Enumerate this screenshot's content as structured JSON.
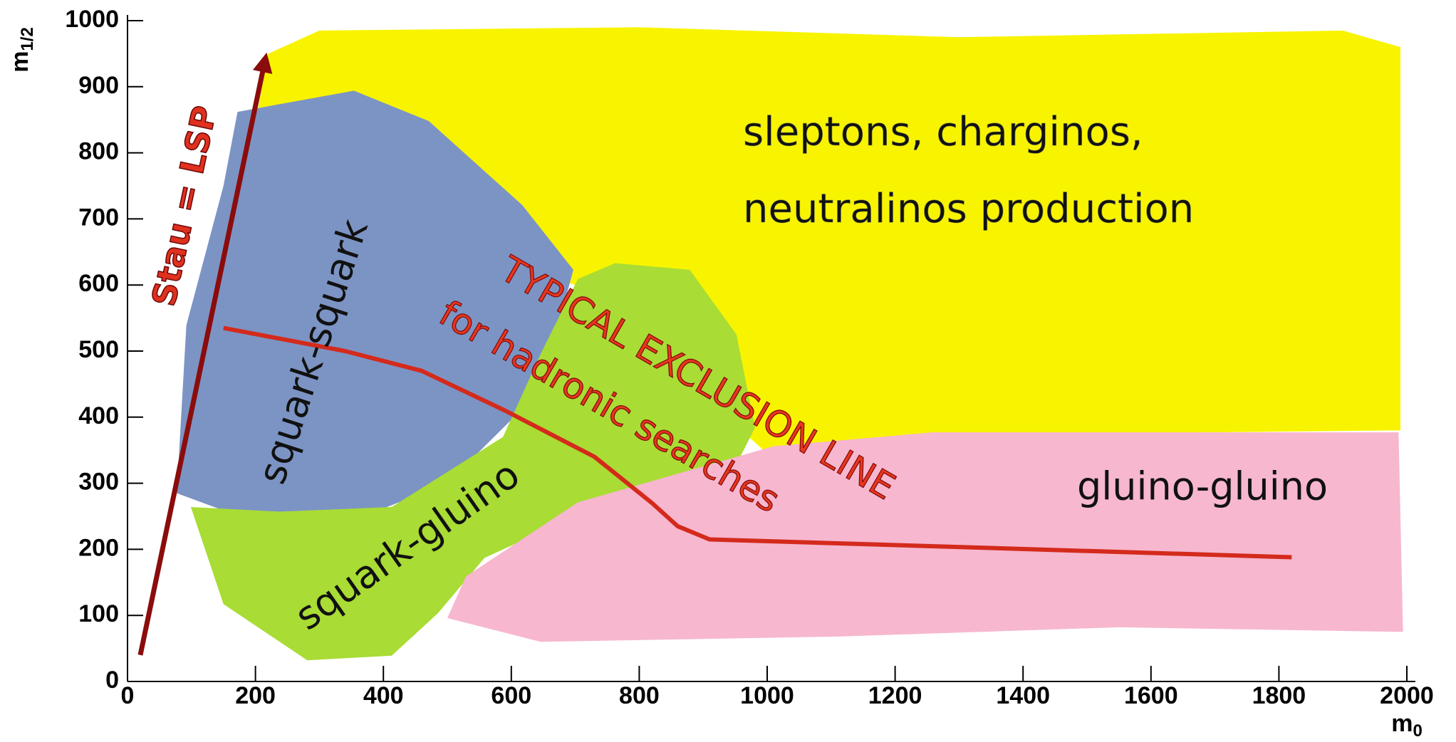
{
  "chart_data": {
    "type": "line",
    "xlabel": "m",
    "xlabel_sub": "0",
    "ylabel": "m",
    "ylabel_sub": "1/2",
    "xlim": [
      0,
      2000
    ],
    "ylim": [
      0,
      1000
    ],
    "xticks": [
      0,
      200,
      400,
      600,
      800,
      1000,
      1200,
      1400,
      1600,
      1800,
      2000
    ],
    "yticks": [
      0,
      100,
      200,
      300,
      400,
      500,
      600,
      700,
      800,
      900,
      1000
    ],
    "regions": [
      {
        "label": [
          "sleptons, charginos,",
          "neutralinos production"
        ],
        "color": "#f8f400",
        "x": [
          172,
          220,
          300,
          800,
          1300,
          1900,
          1990,
          1990,
          1500,
          1000,
          960,
          700,
          400,
          172
        ],
        "y": [
          700,
          950,
          985,
          990,
          975,
          985,
          960,
          380,
          375,
          345,
          380,
          600,
          700,
          700
        ]
      },
      {
        "label": "squark-squark",
        "color": "#7c94c4",
        "x": [
          172,
          354,
          471,
          617,
          697,
          646,
          500,
          369,
          194,
          77,
          92,
          150
        ],
        "y": [
          862,
          894,
          848,
          721,
          623,
          440,
          300,
          250,
          243,
          285,
          539,
          750
        ]
      },
      {
        "label": "squark-gluino",
        "color": "#a9dc34",
        "x": [
          704,
          762,
          879,
          952,
          981,
          937,
          748,
          558,
          485,
          413,
          281,
          150,
          99,
          238,
          413,
          587,
          646
        ],
        "y": [
          609,
          633,
          623,
          525,
          384,
          300,
          271,
          187,
          103,
          39,
          32,
          117,
          264,
          257,
          264,
          370,
          496
        ]
      },
      {
        "label": "gluino-gluino",
        "color": "#f7b7cf",
        "x": [
          500,
          529,
          704,
          1010,
          1258,
          1987,
          1994,
          1550,
          1112,
          646
        ],
        "y": [
          96,
          159,
          271,
          356,
          377,
          377,
          75,
          82,
          68,
          60
        ]
      }
    ],
    "series": [
      {
        "label": [
          "TYPICAL EXCLUSION LINE",
          "for hadronic searches"
        ],
        "color": "#d42a1c",
        "x": [
          150,
          340,
          460,
          590,
          730,
          820,
          860,
          910,
          1820
        ],
        "y": [
          535,
          500,
          470,
          410,
          340,
          270,
          235,
          215,
          188
        ]
      },
      {
        "label": "Stau = LSP",
        "color": "#8b0c0c",
        "x": [
          20,
          215
        ],
        "y": [
          40,
          940
        ]
      }
    ]
  }
}
